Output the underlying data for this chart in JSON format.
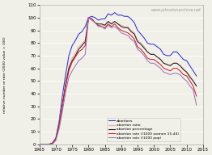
{
  "title": "www.johnstonarchive.net",
  "ylabel": "relative number or rate (2000 value = 100)",
  "xlim": [
    1965,
    2015
  ],
  "ylim": [
    0,
    110
  ],
  "yticks": [
    0,
    10,
    20,
    30,
    40,
    50,
    60,
    70,
    80,
    90,
    100,
    110
  ],
  "xticks": [
    1965,
    1970,
    1975,
    1980,
    1985,
    1990,
    1995,
    2000,
    2005,
    2010,
    2015
  ],
  "background_color": "#f0efe8",
  "years": [
    1965,
    1966,
    1967,
    1968,
    1969,
    1970,
    1971,
    1972,
    1973,
    1974,
    1975,
    1976,
    1977,
    1978,
    1979,
    1980,
    1981,
    1982,
    1983,
    1984,
    1985,
    1986,
    1987,
    1988,
    1989,
    1990,
    1991,
    1992,
    1993,
    1994,
    1995,
    1996,
    1997,
    1998,
    1999,
    2000,
    2001,
    2002,
    2003,
    2004,
    2005,
    2006,
    2007,
    2008,
    2009,
    2010,
    2011,
    2012,
    2013
  ],
  "abortions": [
    0,
    0,
    0,
    0,
    1,
    5,
    18,
    38,
    55,
    70,
    78,
    82,
    87,
    89,
    93,
    100,
    101,
    100,
    98,
    99,
    99,
    103,
    102,
    104,
    102,
    102,
    101,
    101,
    99,
    96,
    90,
    87,
    84,
    80,
    79,
    79,
    77,
    75,
    71,
    70,
    70,
    73,
    73,
    70,
    67,
    66,
    62,
    58,
    54
  ],
  "abortion_ratio": [
    0,
    0,
    0,
    0,
    1,
    4,
    16,
    33,
    49,
    62,
    68,
    72,
    77,
    79,
    82,
    100,
    99,
    96,
    94,
    94,
    94,
    97,
    95,
    97,
    95,
    94,
    93,
    93,
    90,
    88,
    82,
    80,
    77,
    73,
    71,
    71,
    69,
    67,
    64,
    63,
    62,
    64,
    64,
    62,
    60,
    57,
    54,
    50,
    46
  ],
  "abortion_pct": [
    0,
    0,
    0,
    0,
    1,
    4,
    15,
    31,
    47,
    60,
    66,
    70,
    75,
    78,
    81,
    100,
    99,
    96,
    95,
    95,
    94,
    97,
    95,
    97,
    95,
    93,
    92,
    92,
    89,
    87,
    81,
    79,
    76,
    73,
    71,
    71,
    69,
    67,
    64,
    63,
    62,
    64,
    64,
    62,
    59,
    57,
    53,
    50,
    46
  ],
  "abortion_rate_women": [
    0,
    0,
    0,
    0,
    1,
    4,
    15,
    30,
    46,
    58,
    65,
    69,
    73,
    75,
    78,
    100,
    99,
    96,
    94,
    93,
    92,
    95,
    93,
    95,
    92,
    90,
    89,
    88,
    86,
    83,
    77,
    75,
    72,
    68,
    67,
    67,
    65,
    63,
    60,
    59,
    58,
    60,
    60,
    58,
    55,
    54,
    50,
    46,
    38
  ],
  "abortion_rate_pop": [
    0,
    0,
    0,
    0,
    0,
    3,
    12,
    26,
    41,
    53,
    58,
    62,
    66,
    68,
    71,
    100,
    98,
    96,
    93,
    93,
    91,
    94,
    92,
    93,
    91,
    88,
    87,
    86,
    83,
    81,
    75,
    73,
    70,
    66,
    64,
    64,
    62,
    60,
    57,
    56,
    55,
    56,
    56,
    55,
    52,
    50,
    46,
    43,
    31
  ]
}
